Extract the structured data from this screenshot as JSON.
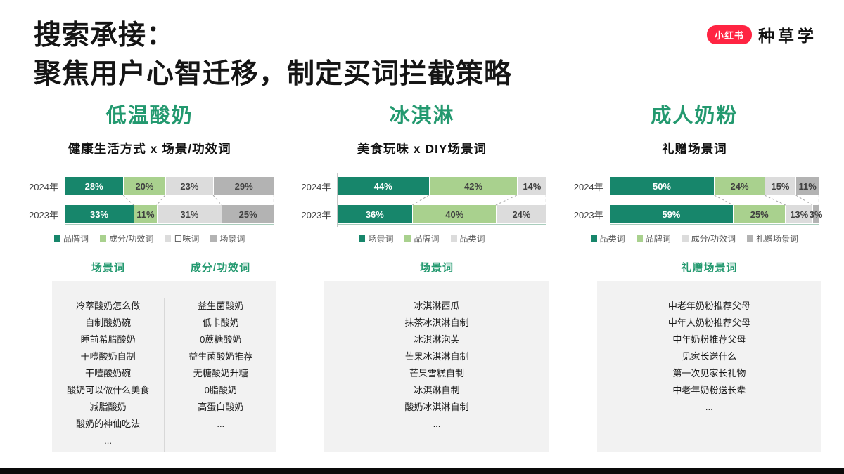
{
  "header": {
    "title_line1": "搜索承接：",
    "title_line2": "聚焦用户心智迁移，制定买词拦截策略",
    "logo": {
      "badge": "小红书",
      "brand": "种草学",
      "badge_color": "#ff2442"
    }
  },
  "colors": {
    "series": [
      "#17866b",
      "#a9d18e",
      "#dcdcdc",
      "#b3b3b3"
    ],
    "title_green": "#23996f",
    "panel_bg": "#f2f2f2",
    "connector": "#a6a6a6"
  },
  "chart_data": [
    {
      "type": "bar",
      "stacked": true,
      "orientation": "horizontal",
      "category": "低温酸奶",
      "subtitle": "健康生活方式 x 场景/功效词",
      "categories": [
        "2024年",
        "2023年"
      ],
      "unit": "%",
      "xlim": [
        0,
        100
      ],
      "series": [
        {
          "name": "品牌词",
          "values": [
            28,
            33
          ]
        },
        {
          "name": "成分/功效词",
          "values": [
            20,
            11
          ]
        },
        {
          "name": "口味词",
          "values": [
            23,
            31
          ]
        },
        {
          "name": "场景词",
          "values": [
            29,
            25
          ]
        }
      ],
      "keyword_lists": [
        {
          "header": "场景词",
          "items": [
            "冷萃酸奶怎么做",
            "自制酸奶碗",
            "睡前希腊酸奶",
            "干噎酸奶自制",
            "干噎酸奶碗",
            "酸奶可以做什么美食",
            "减脂酸奶",
            "酸奶的神仙吃法",
            "..."
          ]
        },
        {
          "header": "成分/功效词",
          "items": [
            "益生菌酸奶",
            "低卡酸奶",
            "0蔗糖酸奶",
            "益生菌酸奶推荐",
            "无糖酸奶升糖",
            "0脂酸奶",
            "高蛋白酸奶",
            "..."
          ]
        }
      ]
    },
    {
      "type": "bar",
      "stacked": true,
      "orientation": "horizontal",
      "category": "冰淇淋",
      "subtitle": "美食玩味 x DIY场景词",
      "categories": [
        "2024年",
        "2023年"
      ],
      "unit": "%",
      "xlim": [
        0,
        100
      ],
      "series": [
        {
          "name": "场景词",
          "values": [
            44,
            36
          ]
        },
        {
          "name": "品牌词",
          "values": [
            42,
            40
          ]
        },
        {
          "name": "品类词",
          "values": [
            14,
            24
          ]
        }
      ],
      "keyword_lists": [
        {
          "header": "场景词",
          "items": [
            "冰淇淋西瓜",
            "抹茶冰淇淋自制",
            "冰淇淋泡芙",
            "芒果冰淇淋自制",
            "芒果雪糕自制",
            "冰淇淋自制",
            "酸奶冰淇淋自制",
            "..."
          ]
        }
      ]
    },
    {
      "type": "bar",
      "stacked": true,
      "orientation": "horizontal",
      "category": "成人奶粉",
      "subtitle": "礼赠场景词",
      "categories": [
        "2024年",
        "2023年"
      ],
      "unit": "%",
      "xlim": [
        0,
        100
      ],
      "series": [
        {
          "name": "品类词",
          "values": [
            50,
            59
          ]
        },
        {
          "name": "品牌词",
          "values": [
            24,
            25
          ]
        },
        {
          "name": "成分/功效词",
          "values": [
            15,
            13
          ]
        },
        {
          "name": "礼赠场景词",
          "values": [
            11,
            3
          ]
        }
      ],
      "keyword_lists": [
        {
          "header": "礼赠场景词",
          "items": [
            "中老年奶粉推荐父母",
            "中年人奶粉推荐父母",
            "中年奶粉推荐父母",
            "见家长送什么",
            "第一次见家长礼物",
            "中老年奶粉送长辈",
            "..."
          ]
        }
      ]
    }
  ]
}
